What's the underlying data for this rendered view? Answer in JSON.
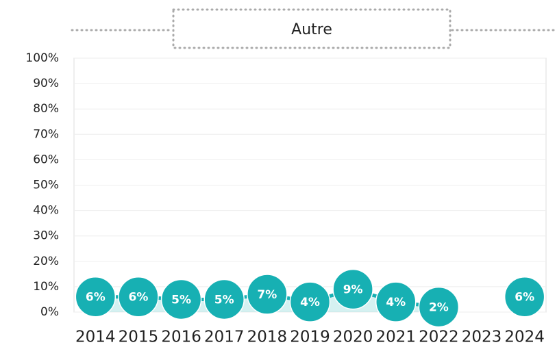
{
  "chart_data": {
    "type": "line",
    "title": "Autre",
    "categories": [
      "2014",
      "2015",
      "2016",
      "2017",
      "2018",
      "2019",
      "2020",
      "2021",
      "2022",
      "2023",
      "2024"
    ],
    "series": [
      {
        "name": "Autre",
        "color": "#17b0b3",
        "values": [
          6,
          6,
          5,
          5,
          7,
          4,
          9,
          4,
          2,
          null,
          6
        ],
        "value_labels": [
          "6%",
          "6%",
          "5%",
          "5%",
          "7%",
          "4%",
          "9%",
          "4%",
          "2%",
          null,
          "6%"
        ]
      }
    ],
    "ylim": [
      0,
      100
    ],
    "yticks": [
      {
        "value": 0,
        "label": "0%"
      },
      {
        "value": 10,
        "label": "10%"
      },
      {
        "value": 20,
        "label": "20%"
      },
      {
        "value": 30,
        "label": "30%"
      },
      {
        "value": 40,
        "label": "40%"
      },
      {
        "value": 50,
        "label": "50%"
      },
      {
        "value": 60,
        "label": "60%"
      },
      {
        "value": 70,
        "label": "70%"
      },
      {
        "value": 80,
        "label": "80%"
      },
      {
        "value": 90,
        "label": "90%"
      },
      {
        "value": 100,
        "label": "100%"
      }
    ],
    "grid": true
  }
}
